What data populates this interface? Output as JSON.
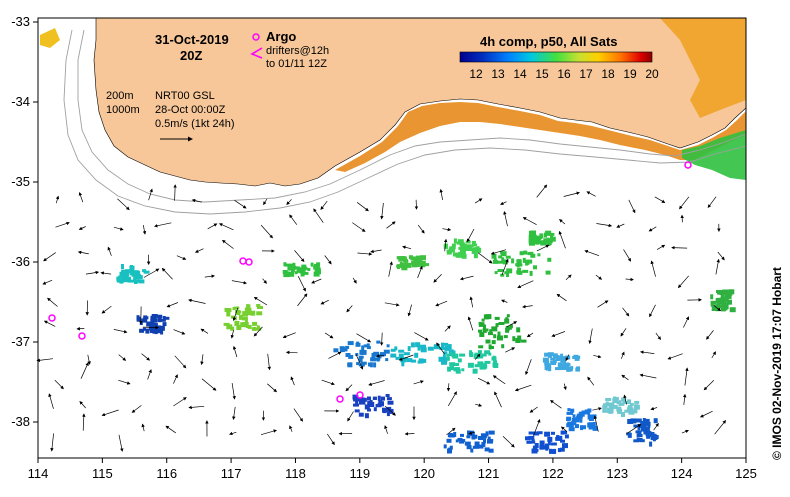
{
  "map": {
    "date_title": "31-Oct-2019",
    "time_title": "20Z",
    "argo_label": "Argo",
    "drifter_label": "drifters@12h",
    "drifter_range": "to 01/11 12Z",
    "contour_200": "200m",
    "contour_1000": "1000m",
    "product": "NRT00 GSL",
    "product_date": "28-Oct 00:00Z",
    "scale_label": "0.5m/s (1kt 24h)",
    "colorbar_title": "4h comp, p50, All Sats",
    "colorbar_ticks": [
      "12",
      "13",
      "14",
      "15",
      "16",
      "17",
      "18",
      "19",
      "20"
    ],
    "credit": "© IMOS 02-Nov-2019 17:07 Hobart",
    "x_ticks": [
      "114",
      "115",
      "116",
      "117",
      "118",
      "119",
      "120",
      "121",
      "122",
      "123",
      "124",
      "125"
    ],
    "y_ticks": [
      "-33",
      "-34",
      "-35",
      "-36",
      "-37",
      "-38"
    ],
    "colors": {
      "land": "#f7c79a",
      "argo": "#ff00ff",
      "sst_low": "#00008f",
      "sst_high": "#8b0000"
    }
  }
}
